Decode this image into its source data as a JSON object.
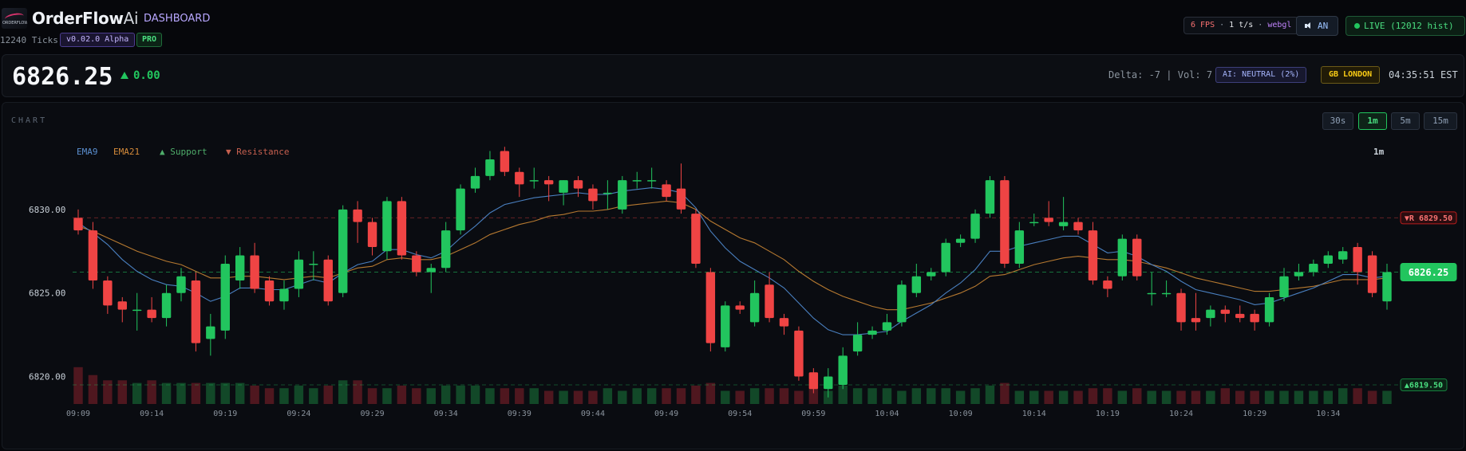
{
  "header": {
    "brand_main": "OrderFlow",
    "brand_ai": "Ai",
    "brand_sub": "DASHBOARD",
    "ticks": "12240 Ticks",
    "version": "v0.02.0 Alpha",
    "plan": "PRO",
    "fps": "6 FPS",
    "tps": "1 t/s",
    "renderer": "webgl",
    "sound": "AN",
    "live": "LIVE (12012 hist)",
    "colors": {
      "live": "#22c55e",
      "brand_accent": "#b8a7ff"
    }
  },
  "pricebar": {
    "price": "6826.25",
    "change": "0.00",
    "delta": "Delta: -7",
    "vol": "Vol: 7",
    "ai": "AI: NEUTRAL (2%)",
    "session": "GB LONDON",
    "time": "04:35:51 EST"
  },
  "chart_panel": {
    "title": "CHART",
    "timeframes": [
      "30s",
      "1m",
      "5m",
      "15m"
    ],
    "active_timeframe": "1m",
    "timeframe_label": "1m",
    "legend": {
      "ema9": "EMA9",
      "ema21": "EMA21",
      "support": "▲ Support",
      "resistance": "▼ Resistance"
    },
    "price_tag": "6826.25",
    "resistance_tag": "▼R 6829.50",
    "support_tag": "▲6819.50"
  },
  "chart_data": {
    "type": "candlestick",
    "y_ticks": [
      "6830.00",
      "6825.00",
      "6820.00"
    ],
    "x_ticks": [
      "09:09",
      "09:14",
      "09:19",
      "09:24",
      "09:29",
      "09:34",
      "09:39",
      "09:44",
      "09:49",
      "09:54",
      "09:59",
      "10:04",
      "10:09",
      "10:14",
      "10:19",
      "10:24",
      "10:29",
      "10:34"
    ],
    "ylim": [
      6818.5,
      6834.0
    ],
    "current_price": 6826.25,
    "resistance": 6829.5,
    "support": 6819.5,
    "candles": [
      [
        6829.5,
        6828.75,
        6830.0,
        6828.5
      ],
      [
        6828.75,
        6825.75,
        6829.25,
        6825.25
      ],
      [
        6825.75,
        6824.25,
        6826.0,
        6823.75
      ],
      [
        6824.5,
        6824.0,
        6824.75,
        6823.25
      ],
      [
        6824.0,
        6824.0,
        6825.0,
        6822.75
      ],
      [
        6824.0,
        6823.5,
        6824.75,
        6823.25
      ],
      [
        6823.5,
        6825.0,
        6825.5,
        6823.0
      ],
      [
        6825.0,
        6826.0,
        6826.5,
        6824.5
      ],
      [
        6825.75,
        6822.0,
        6826.25,
        6821.5
      ],
      [
        6822.25,
        6823.0,
        6823.75,
        6821.25
      ],
      [
        6822.75,
        6826.75,
        6827.25,
        6822.25
      ],
      [
        6825.75,
        6827.25,
        6827.75,
        6825.25
      ],
      [
        6827.25,
        6825.25,
        6828.0,
        6825.0
      ],
      [
        6825.75,
        6824.5,
        6826.0,
        6824.25
      ],
      [
        6824.5,
        6825.25,
        6825.75,
        6824.0
      ],
      [
        6825.25,
        6827.0,
        6827.5,
        6824.75
      ],
      [
        6826.75,
        6826.75,
        6827.5,
        6825.75
      ],
      [
        6827.0,
        6824.5,
        6827.25,
        6824.25
      ],
      [
        6825.0,
        6830.0,
        6830.25,
        6824.75
      ],
      [
        6830.0,
        6829.25,
        6830.5,
        6828.0
      ],
      [
        6829.25,
        6827.75,
        6829.5,
        6827.25
      ],
      [
        6827.5,
        6830.5,
        6830.75,
        6827.0
      ],
      [
        6830.5,
        6827.25,
        6830.75,
        6827.0
      ],
      [
        6827.25,
        6826.25,
        6827.5,
        6826.0
      ],
      [
        6826.25,
        6826.5,
        6826.75,
        6825.0
      ],
      [
        6826.5,
        6828.75,
        6829.25,
        6826.25
      ],
      [
        6828.75,
        6831.25,
        6831.5,
        6828.5
      ],
      [
        6831.25,
        6832.0,
        6832.5,
        6831.0
      ],
      [
        6832.0,
        6833.0,
        6833.5,
        6831.75
      ],
      [
        6833.5,
        6832.25,
        6833.75,
        6832.0
      ],
      [
        6832.25,
        6831.5,
        6832.5,
        6830.75
      ],
      [
        6831.75,
        6831.75,
        6832.5,
        6831.25
      ],
      [
        6831.75,
        6831.5,
        6832.0,
        6830.5
      ],
      [
        6831.0,
        6831.75,
        6831.75,
        6830.25
      ],
      [
        6831.75,
        6831.25,
        6832.0,
        6830.75
      ],
      [
        6831.25,
        6830.5,
        6831.5,
        6830.0
      ],
      [
        6831.0,
        6831.0,
        6831.75,
        6830.0
      ],
      [
        6830.0,
        6831.75,
        6832.0,
        6829.75
      ],
      [
        6831.75,
        6831.75,
        6832.25,
        6831.25
      ],
      [
        6831.75,
        6831.75,
        6832.5,
        6831.25
      ],
      [
        6831.5,
        6830.75,
        6831.75,
        6830.5
      ],
      [
        6831.25,
        6830.0,
        6832.75,
        6829.75
      ],
      [
        6829.75,
        6826.75,
        6830.0,
        6826.5
      ],
      [
        6826.25,
        6822.0,
        6826.5,
        6821.5
      ],
      [
        6821.75,
        6824.25,
        6824.5,
        6821.5
      ],
      [
        6824.25,
        6824.0,
        6824.5,
        6823.75
      ],
      [
        6823.25,
        6825.0,
        6825.75,
        6823.0
      ],
      [
        6825.5,
        6823.5,
        6826.25,
        6823.25
      ],
      [
        6823.5,
        6823.0,
        6823.75,
        6822.5
      ],
      [
        6822.75,
        6820.0,
        6823.0,
        6819.75
      ],
      [
        6820.25,
        6819.25,
        6820.5,
        6819.0
      ],
      [
        6819.25,
        6820.0,
        6820.5,
        6818.75
      ],
      [
        6819.5,
        6821.25,
        6821.75,
        6819.25
      ],
      [
        6821.5,
        6822.5,
        6823.25,
        6821.25
      ],
      [
        6822.5,
        6822.75,
        6823.0,
        6822.25
      ],
      [
        6822.75,
        6823.25,
        6823.75,
        6822.5
      ],
      [
        6823.25,
        6825.5,
        6825.75,
        6823.0
      ],
      [
        6825.0,
        6826.0,
        6826.75,
        6824.75
      ],
      [
        6826.0,
        6826.25,
        6826.5,
        6825.75
      ],
      [
        6826.25,
        6828.0,
        6828.25,
        6826.0
      ],
      [
        6828.0,
        6828.25,
        6828.5,
        6827.75
      ],
      [
        6828.25,
        6829.75,
        6830.0,
        6828.0
      ],
      [
        6829.75,
        6831.75,
        6832.0,
        6829.5
      ],
      [
        6831.75,
        6826.75,
        6832.0,
        6826.5
      ],
      [
        6826.75,
        6828.75,
        6829.25,
        6826.5
      ],
      [
        6829.25,
        6829.25,
        6829.75,
        6829.0
      ],
      [
        6829.5,
        6829.25,
        6830.5,
        6829.0
      ],
      [
        6829.0,
        6829.25,
        6830.75,
        6828.75
      ],
      [
        6829.25,
        6828.75,
        6829.5,
        6828.5
      ],
      [
        6828.75,
        6825.75,
        6829.25,
        6825.5
      ],
      [
        6825.75,
        6825.25,
        6826.0,
        6824.75
      ],
      [
        6826.0,
        6828.25,
        6828.5,
        6825.75
      ],
      [
        6828.25,
        6826.0,
        6828.5,
        6825.75
      ],
      [
        6825.0,
        6825.0,
        6826.25,
        6824.25
      ],
      [
        6825.0,
        6825.0,
        6825.75,
        6824.75
      ],
      [
        6825.0,
        6823.25,
        6825.25,
        6822.75
      ],
      [
        6823.5,
        6823.25,
        6825.0,
        6822.75
      ],
      [
        6823.5,
        6824.0,
        6824.25,
        6823.0
      ],
      [
        6824.0,
        6823.75,
        6824.25,
        6823.25
      ],
      [
        6823.75,
        6823.5,
        6824.25,
        6823.25
      ],
      [
        6823.75,
        6823.25,
        6824.0,
        6822.75
      ],
      [
        6823.25,
        6824.75,
        6825.0,
        6823.0
      ],
      [
        6824.75,
        6826.0,
        6826.5,
        6824.5
      ],
      [
        6826.0,
        6826.25,
        6826.75,
        6825.75
      ],
      [
        6826.25,
        6826.75,
        6827.0,
        6826.0
      ],
      [
        6826.75,
        6827.25,
        6827.5,
        6826.5
      ],
      [
        6827.0,
        6827.5,
        6827.75,
        6826.75
      ],
      [
        6827.75,
        6826.25,
        6828.0,
        6825.5
      ],
      [
        6827.25,
        6825.0,
        6827.5,
        6824.75
      ],
      [
        6824.5,
        6826.25,
        6826.75,
        6824.0
      ]
    ],
    "ema9": [
      6829.2,
      6828.6,
      6827.9,
      6827.0,
      6826.3,
      6825.8,
      6825.5,
      6825.4,
      6825.0,
      6824.5,
      6824.8,
      6825.3,
      6825.3,
      6825.2,
      6825.2,
      6825.5,
      6825.8,
      6825.6,
      6826.2,
      6826.7,
      6826.9,
      6827.6,
      6827.6,
      6827.3,
      6827.1,
      6827.5,
      6828.3,
      6829.0,
      6829.8,
      6830.3,
      6830.5,
      6830.7,
      6830.8,
      6830.9,
      6831.0,
      6830.9,
      6830.9,
      6831.1,
      6831.2,
      6831.3,
      6831.2,
      6831.0,
      6830.1,
      6828.7,
      6827.7,
      6826.9,
      6826.4,
      6825.9,
      6825.3,
      6824.4,
      6823.5,
      6822.8,
      6822.5,
      6822.5,
      6822.6,
      6822.7,
      6823.3,
      6823.8,
      6824.3,
      6825.0,
      6825.6,
      6826.4,
      6827.5,
      6827.5,
      6827.8,
      6828.0,
      6828.2,
      6828.4,
      6828.4,
      6827.9,
      6827.4,
      6827.5,
      6827.2,
      6826.7,
      6826.3,
      6825.7,
      6825.2,
      6825.0,
      6824.8,
      6824.6,
      6824.3,
      6824.4,
      6824.7,
      6825.0,
      6825.3,
      6825.7,
      6826.1,
      6826.1,
      6825.9,
      6826.0
    ],
    "ema21": [
      6829.0,
      6828.7,
      6828.3,
      6827.9,
      6827.5,
      6827.2,
      6826.9,
      6826.7,
      6826.3,
      6825.9,
      6825.9,
      6826.0,
      6826.0,
      6825.9,
      6825.8,
      6825.9,
      6826.0,
      6825.9,
      6826.2,
      6826.5,
      6826.6,
      6827.0,
      6827.1,
      6827.0,
      6827.0,
      6827.2,
      6827.6,
      6828.0,
      6828.5,
      6828.8,
      6829.1,
      6829.3,
      6829.6,
      6829.7,
      6829.9,
      6829.9,
      6830.0,
      6830.2,
      6830.3,
      6830.4,
      6830.5,
      6830.4,
      6830.0,
      6829.3,
      6828.8,
      6828.3,
      6828.0,
      6827.5,
      6827.0,
      6826.3,
      6825.7,
      6825.2,
      6824.8,
      6824.5,
      6824.2,
      6824.0,
      6824.0,
      6824.2,
      6824.4,
      6824.7,
      6825.0,
      6825.4,
      6826.0,
      6826.1,
      6826.4,
      6826.7,
      6826.9,
      6827.1,
      6827.2,
      6827.1,
      6827.0,
      6827.0,
      6826.9,
      6826.7,
      6826.5,
      6826.2,
      6825.9,
      6825.7,
      6825.5,
      6825.3,
      6825.1,
      6825.1,
      6825.2,
      6825.3,
      6825.4,
      6825.6,
      6825.8,
      6825.8,
      6825.8,
      6825.9
    ],
    "volumes": [
      14,
      11,
      9,
      9,
      8,
      9,
      8,
      8,
      8,
      8,
      8,
      8,
      7,
      6,
      6,
      7,
      6,
      7,
      9,
      9,
      6,
      6,
      7,
      6,
      6,
      7,
      7,
      7,
      6,
      6,
      6,
      6,
      5,
      5,
      5,
      5,
      6,
      5,
      6,
      6,
      6,
      6,
      7,
      8,
      5,
      5,
      6,
      6,
      6,
      5,
      6,
      5,
      7,
      6,
      6,
      6,
      5,
      6,
      6,
      6,
      5,
      6,
      7,
      8,
      5,
      5,
      5,
      5,
      5,
      6,
      6,
      5,
      6,
      5,
      5,
      5,
      5,
      5,
      6,
      5,
      5,
      5,
      5,
      5,
      5,
      5,
      6,
      6,
      5,
      5
    ]
  }
}
